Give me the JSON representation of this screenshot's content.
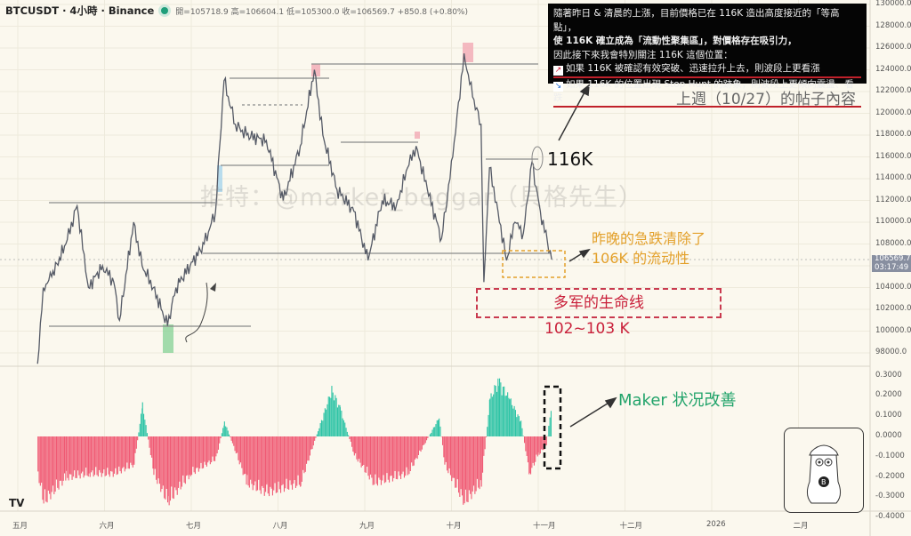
{
  "header": {
    "symbol": "BTCUSDT · 4小時 · Binance",
    "ohlc": "開=105718.9 高=106604.1 低=105300.0 收=106569.7 +850.8 (+0.80%)"
  },
  "note_box": {
    "line1": "隨著昨日 & 清晨的上漲，目前價格已在 116K 造出高度接近的「等高點」，",
    "line2": "使 116K 確立成為「流動性聚集區」，對價格存在吸引力，",
    "line3": "因此接下來我會特別關注 116K 這個位置：",
    "line4": "如果 116K 被確認有效突破、迅速拉升上去，則波段上更看漲",
    "line5": "如果 116K 的位置出現 Stop Hunt 的跡象，則波段上更傾向震盪、看跌",
    "icon4": "chart-up-icon",
    "icon5": "chart-down-icon"
  },
  "annotations": {
    "last_week": "上週（10/27）的帖子內容",
    "level_116k": "116K",
    "liquidity_line1": "昨晚的急跌清除了",
    "liquidity_line2": "106K 的流动性",
    "lifeline": "多军的生命线",
    "lifeline_range": "102~103 K",
    "maker": "Maker 状况改善",
    "watermark": "推特：@market_beggar（貝格先生）"
  },
  "price_tag": {
    "price": "106569.7",
    "countdown": "03:17:49"
  },
  "colors": {
    "price_line": "#555a66",
    "positive": "#2ec4a6",
    "negative": "#f05a74",
    "level_line": "#999999",
    "highlight_red": "#f2a9b4",
    "highlight_blue": "#a8d4ec",
    "highlight_green": "#7ccf8e"
  },
  "chart_data": [
    {
      "type": "line",
      "title": "BTCUSDT · 4小時 · Binance",
      "y_ticks": [
        "130000.0",
        "128000.0",
        "126000.0",
        "124000.0",
        "122000.0",
        "120000.0",
        "118000.0",
        "116000.0",
        "114000.0",
        "112000.0",
        "110000.0",
        "108000.0",
        "104000.0",
        "102000.0",
        "100000.0",
        "98000.0"
      ],
      "ylim": [
        98000,
        130000
      ],
      "x_ticks": [
        "五月",
        "六月",
        "七月",
        "八月",
        "九月",
        "十月",
        "十一月",
        "十二月",
        "2026",
        "二月"
      ],
      "grid": true,
      "x": [
        "2025-05-08",
        "2025-05-10",
        "2025-05-13",
        "2025-05-18",
        "2025-05-22",
        "2025-05-26",
        "2025-05-31",
        "2025-06-04",
        "2025-06-06",
        "2025-06-11",
        "2025-06-14",
        "2025-06-18",
        "2025-06-23",
        "2025-06-26",
        "2025-07-01",
        "2025-07-06",
        "2025-07-10",
        "2025-07-13",
        "2025-07-17",
        "2025-07-21",
        "2025-07-28",
        "2025-08-03",
        "2025-08-09",
        "2025-08-14",
        "2025-08-17",
        "2025-08-22",
        "2025-08-28",
        "2025-09-02",
        "2025-09-07",
        "2025-09-12",
        "2025-09-16",
        "2025-09-19",
        "2025-09-23",
        "2025-09-28",
        "2025-10-02",
        "2025-10-06",
        "2025-10-09",
        "2025-10-12",
        "2025-10-13",
        "2025-10-15",
        "2025-10-18",
        "2025-10-21",
        "2025-10-24",
        "2025-10-27",
        "2025-10-30",
        "2025-11-02",
        "2025-11-06"
      ],
      "values": [
        97000,
        104000,
        105000,
        108000,
        111500,
        104000,
        106000,
        104500,
        101000,
        110000,
        106000,
        104000,
        100500,
        104000,
        106000,
        108000,
        111000,
        123000,
        119000,
        118000,
        117500,
        112000,
        117000,
        124000,
        118000,
        113000,
        111000,
        106500,
        112000,
        111500,
        115000,
        117000,
        113000,
        108500,
        116000,
        125500,
        121500,
        119000,
        104500,
        115000,
        111000,
        106500,
        110000,
        109000,
        115500,
        111000,
        106570
      ]
    },
    {
      "type": "bar",
      "y_ticks": [
        "0.3000",
        "0.2000",
        "0.1000",
        "0.0000",
        "-0.1000",
        "-0.2000",
        "-0.3000",
        "-0.4000"
      ],
      "ylim": [
        -0.4,
        0.3
      ],
      "x": [
        "2025-05-08",
        "2025-05-10",
        "2025-05-18",
        "2025-05-26",
        "2025-06-04",
        "2025-06-11",
        "2025-06-14",
        "2025-06-18",
        "2025-06-23",
        "2025-07-01",
        "2025-07-10",
        "2025-07-13",
        "2025-07-21",
        "2025-07-28",
        "2025-08-09",
        "2025-08-20",
        "2025-08-23",
        "2025-08-28",
        "2025-09-04",
        "2025-09-16",
        "2025-09-27",
        "2025-09-29",
        "2025-10-06",
        "2025-10-12",
        "2025-10-15",
        "2025-10-18",
        "2025-10-22",
        "2025-10-26",
        "2025-10-29",
        "2025-11-01",
        "2025-11-04",
        "2025-11-06"
      ],
      "values": [
        -0.2,
        -0.35,
        -0.22,
        -0.2,
        -0.2,
        -0.15,
        0.17,
        -0.2,
        -0.35,
        -0.2,
        -0.12,
        0.08,
        -0.25,
        -0.3,
        -0.25,
        0.25,
        0.15,
        -0.1,
        -0.25,
        -0.2,
        0.1,
        -0.15,
        -0.35,
        -0.25,
        0.2,
        0.3,
        0.2,
        0.08,
        -0.2,
        -0.1,
        -0.05,
        0.2
      ]
    }
  ]
}
